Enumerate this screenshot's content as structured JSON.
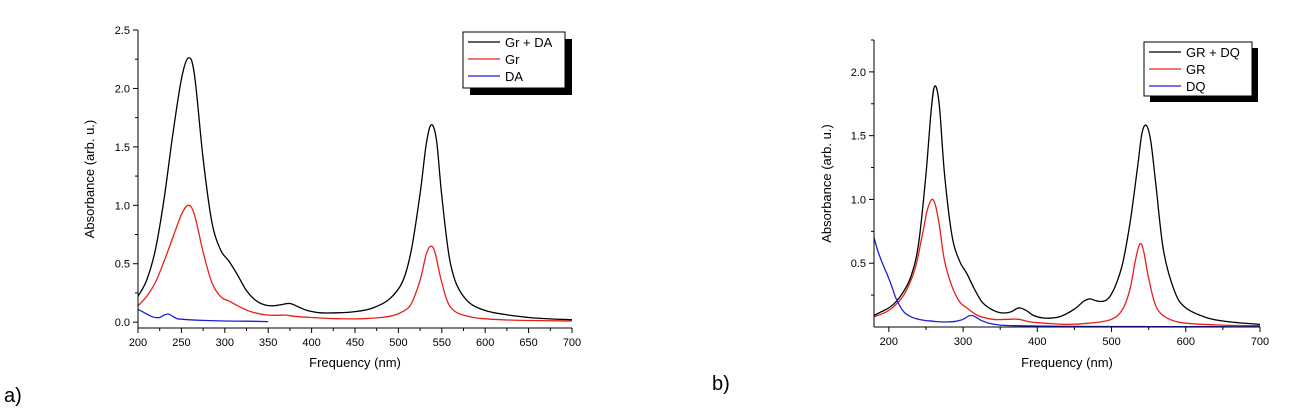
{
  "figure": {
    "panel_labels": [
      "a)",
      "b)"
    ]
  },
  "chart_data": [
    {
      "type": "line",
      "panel": "a)",
      "title": "",
      "xlabel": "Frequency (nm)",
      "ylabel": "Absorbance (arb. u.)",
      "xlim": [
        200,
        700
      ],
      "ylim": [
        -0.05,
        2.5
      ],
      "xticks": [
        200,
        250,
        300,
        350,
        400,
        450,
        500,
        550,
        600,
        650,
        700
      ],
      "yticks": [
        0.0,
        0.5,
        1.0,
        1.5,
        2.0,
        2.5
      ],
      "ytick_labels": [
        "0.0",
        "0.5",
        "1.0",
        "1.5",
        "2.0",
        "2.5"
      ],
      "legend": "top-right",
      "series": [
        {
          "name": "Gr + DA",
          "color": "#000000",
          "x": [
            200,
            210,
            220,
            230,
            240,
            250,
            258,
            265,
            275,
            285,
            295,
            305,
            315,
            325,
            335,
            345,
            355,
            365,
            375,
            385,
            395,
            410,
            430,
            450,
            470,
            490,
            505,
            515,
            525,
            532,
            538,
            544,
            550,
            560,
            575,
            600,
            650,
            700
          ],
          "y": [
            0.22,
            0.36,
            0.62,
            1.05,
            1.6,
            2.08,
            2.26,
            2.12,
            1.4,
            0.86,
            0.62,
            0.52,
            0.4,
            0.27,
            0.19,
            0.15,
            0.14,
            0.15,
            0.16,
            0.13,
            0.1,
            0.08,
            0.08,
            0.09,
            0.12,
            0.2,
            0.35,
            0.62,
            1.1,
            1.52,
            1.69,
            1.55,
            1.08,
            0.5,
            0.22,
            0.1,
            0.04,
            0.02
          ]
        },
        {
          "name": "Gr",
          "color": "#e8201a",
          "x": [
            200,
            210,
            220,
            230,
            240,
            250,
            258,
            265,
            275,
            285,
            295,
            305,
            315,
            330,
            350,
            370,
            380,
            400,
            430,
            460,
            490,
            505,
            515,
            525,
            532,
            537,
            542,
            550,
            560,
            580,
            620,
            700
          ],
          "y": [
            0.14,
            0.22,
            0.34,
            0.52,
            0.72,
            0.92,
            1.0,
            0.92,
            0.6,
            0.34,
            0.22,
            0.18,
            0.14,
            0.09,
            0.06,
            0.06,
            0.05,
            0.04,
            0.03,
            0.03,
            0.05,
            0.09,
            0.16,
            0.36,
            0.58,
            0.65,
            0.6,
            0.34,
            0.13,
            0.05,
            0.02,
            0.01
          ]
        },
        {
          "name": "DA",
          "color": "#1f1fd8",
          "x": [
            200,
            205,
            210,
            215,
            220,
            225,
            230,
            235,
            240,
            245,
            250,
            260,
            275,
            300,
            325,
            350
          ],
          "y": [
            0.11,
            0.09,
            0.07,
            0.05,
            0.04,
            0.04,
            0.06,
            0.07,
            0.05,
            0.03,
            0.025,
            0.02,
            0.015,
            0.01,
            0.008,
            0.005
          ]
        }
      ]
    },
    {
      "type": "line",
      "panel": "b)",
      "title": "",
      "xlabel": "Frequency (nm)",
      "ylabel": "Absorbance (arb. u.)",
      "xlim": [
        180,
        700
      ],
      "ylim": [
        0.0,
        2.25
      ],
      "xticks": [
        200,
        300,
        400,
        500,
        600,
        700
      ],
      "yticks": [
        0.5,
        1.0,
        1.5,
        2.0
      ],
      "ytick_labels": [
        "0.5",
        "1.0",
        "1.5",
        "2.0"
      ],
      "legend": "top-right",
      "series": [
        {
          "name": "GR + DQ",
          "color": "#000000",
          "x": [
            180,
            190,
            200,
            210,
            220,
            230,
            240,
            250,
            257,
            262,
            268,
            275,
            285,
            295,
            305,
            315,
            325,
            335,
            345,
            355,
            365,
            375,
            385,
            395,
            410,
            430,
            450,
            462,
            470,
            477,
            485,
            495,
            505,
            515,
            525,
            535,
            541,
            547,
            553,
            560,
            570,
            585,
            600,
            630,
            660,
            700
          ],
          "y": [
            0.09,
            0.12,
            0.15,
            0.2,
            0.28,
            0.4,
            0.65,
            1.2,
            1.7,
            1.89,
            1.74,
            1.2,
            0.72,
            0.52,
            0.42,
            0.3,
            0.2,
            0.15,
            0.12,
            0.11,
            0.12,
            0.15,
            0.13,
            0.09,
            0.07,
            0.08,
            0.14,
            0.2,
            0.22,
            0.21,
            0.2,
            0.22,
            0.32,
            0.5,
            0.82,
            1.25,
            1.52,
            1.58,
            1.45,
            1.1,
            0.6,
            0.28,
            0.15,
            0.07,
            0.04,
            0.02
          ]
        },
        {
          "name": "GR",
          "color": "#e8201a",
          "x": [
            180,
            200,
            220,
            235,
            245,
            252,
            258,
            263,
            268,
            275,
            285,
            295,
            305,
            320,
            340,
            360,
            375,
            390,
            410,
            440,
            470,
            500,
            515,
            525,
            532,
            538,
            543,
            550,
            560,
            575,
            600,
            650,
            700
          ],
          "y": [
            0.08,
            0.13,
            0.25,
            0.45,
            0.72,
            0.92,
            1.0,
            0.95,
            0.8,
            0.52,
            0.32,
            0.2,
            0.15,
            0.09,
            0.06,
            0.06,
            0.06,
            0.04,
            0.03,
            0.02,
            0.03,
            0.06,
            0.14,
            0.3,
            0.52,
            0.65,
            0.6,
            0.38,
            0.16,
            0.07,
            0.03,
            0.015,
            0.01
          ]
        },
        {
          "name": "DQ",
          "color": "#1f1fd8",
          "x": [
            180,
            185,
            190,
            195,
            200,
            205,
            210,
            220,
            230,
            240,
            250,
            260,
            270,
            280,
            290,
            300,
            307,
            312,
            318,
            325,
            335,
            350,
            375,
            400,
            450,
            500,
            550,
            600,
            650,
            700
          ],
          "y": [
            0.7,
            0.6,
            0.52,
            0.45,
            0.38,
            0.3,
            0.22,
            0.12,
            0.08,
            0.06,
            0.05,
            0.045,
            0.04,
            0.04,
            0.045,
            0.06,
            0.085,
            0.09,
            0.075,
            0.05,
            0.03,
            0.015,
            0.01,
            0.008,
            0.005,
            0.004,
            0.003,
            0.003,
            0.002,
            0.002
          ]
        }
      ]
    }
  ]
}
